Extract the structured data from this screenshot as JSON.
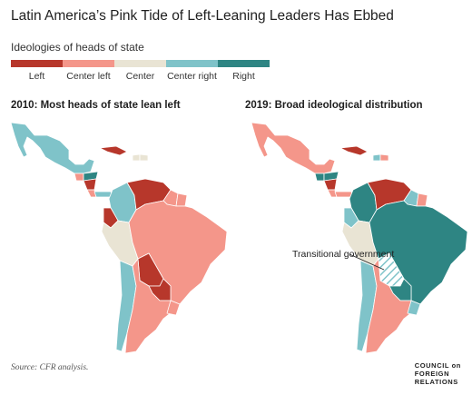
{
  "title": "Latin America’s Pink Tide of Left-Leaning Leaders Has Ebbed",
  "legend": {
    "title": "Ideologies of heads of state",
    "items": [
      {
        "label": "Left",
        "color": "#b7372b"
      },
      {
        "label": "Center left",
        "color": "#f4968a"
      },
      {
        "label": "Center",
        "color": "#e9e4d4"
      },
      {
        "label": "Center right",
        "color": "#7fc3c9"
      },
      {
        "label": "Right",
        "color": "#2e8583"
      }
    ]
  },
  "maps": {
    "left_title": "2010: Most heads of state lean left",
    "right_title": "2019: Broad ideological distribution",
    "annotation": "Transitional government",
    "countries_2010": {
      "Mexico": "Center right",
      "Guatemala": "Center left",
      "Honduras": "Right",
      "Nicaragua": "Left",
      "Costa Rica": "Center left",
      "Panama": "Center right",
      "Cuba": "Left",
      "Haiti": "Center",
      "Dominican Republic": "Center",
      "Colombia": "Center right",
      "Venezuela": "Left",
      "Guyana": "Center left",
      "Suriname": "Center left",
      "Ecuador": "Left",
      "Peru": "Center",
      "Brazil": "Center left",
      "Bolivia": "Left",
      "Paraguay": "Left",
      "Chile": "Center right",
      "Argentina": "Center left",
      "Uruguay": "Center left"
    },
    "countries_2019": {
      "Mexico": "Center left",
      "Guatemala": "Right",
      "Honduras": "Right",
      "Nicaragua": "Left",
      "Costa Rica": "Center left",
      "Panama": "Center left",
      "Cuba": "Left",
      "Haiti": "Center right",
      "Dominican Republic": "Center left",
      "Colombia": "Right",
      "Venezuela": "Left",
      "Guyana": "Center right",
      "Suriname": "Center left",
      "Ecuador": "Center right",
      "Peru": "Center",
      "Brazil": "Right",
      "Bolivia": "Transitional government",
      "Paraguay": "Right",
      "Chile": "Center right",
      "Argentina": "Center left",
      "Uruguay": "Center right"
    }
  },
  "source": "Source: CFR analysis.",
  "brand": [
    "COUNCIL on",
    "FOREIGN",
    "RELATIONS"
  ]
}
